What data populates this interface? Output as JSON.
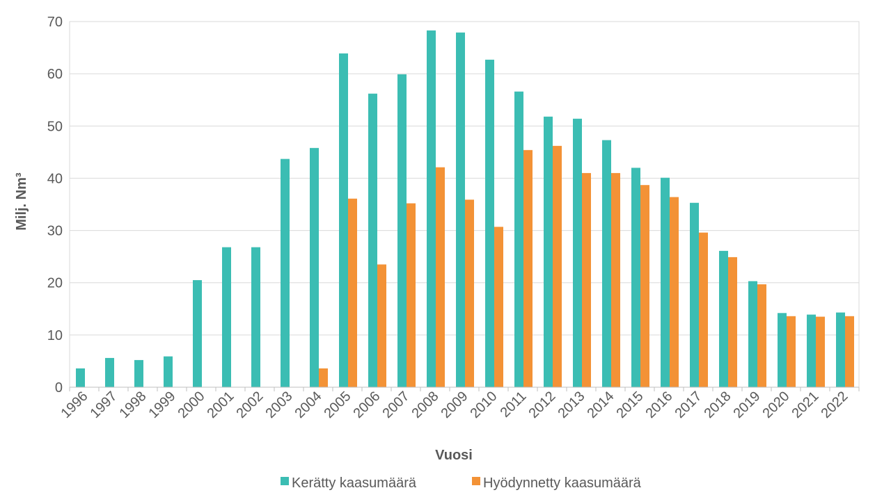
{
  "chart_data": {
    "type": "bar",
    "title": "",
    "xlabel": "Vuosi",
    "ylabel": "Milj. Nm³",
    "ylim": [
      0,
      70
    ],
    "yticks": [
      0,
      10,
      20,
      30,
      40,
      50,
      60,
      70
    ],
    "grid": true,
    "legend_position": "bottom",
    "categories": [
      "1996",
      "1997",
      "1998",
      "1999",
      "2000",
      "2001",
      "2002",
      "2003",
      "2004",
      "2005",
      "2006",
      "2007",
      "2008",
      "2009",
      "2010",
      "2011",
      "2012",
      "2013",
      "2014",
      "2015",
      "2016",
      "2017",
      "2018",
      "2019",
      "2020",
      "2021",
      "2022"
    ],
    "series": [
      {
        "name": "Kerätty kaasumäärä",
        "color": "#3BBDB3",
        "values": [
          3.6,
          5.6,
          5.2,
          5.9,
          20.5,
          26.8,
          26.8,
          43.7,
          45.8,
          63.9,
          56.2,
          59.9,
          68.3,
          67.9,
          62.7,
          56.6,
          51.8,
          51.4,
          47.3,
          42.0,
          40.1,
          35.3,
          26.1,
          20.3,
          14.2,
          13.9,
          14.3
        ]
      },
      {
        "name": "Hyödynnetty kaasumäärä",
        "color": "#F39236",
        "values": [
          0,
          0,
          0,
          0,
          0,
          0,
          0,
          0,
          3.6,
          36.1,
          23.5,
          35.2,
          42.1,
          35.9,
          30.7,
          45.4,
          46.2,
          41.0,
          41.0,
          38.7,
          36.4,
          29.6,
          24.9,
          19.7,
          13.6,
          13.5,
          13.6
        ]
      }
    ]
  }
}
